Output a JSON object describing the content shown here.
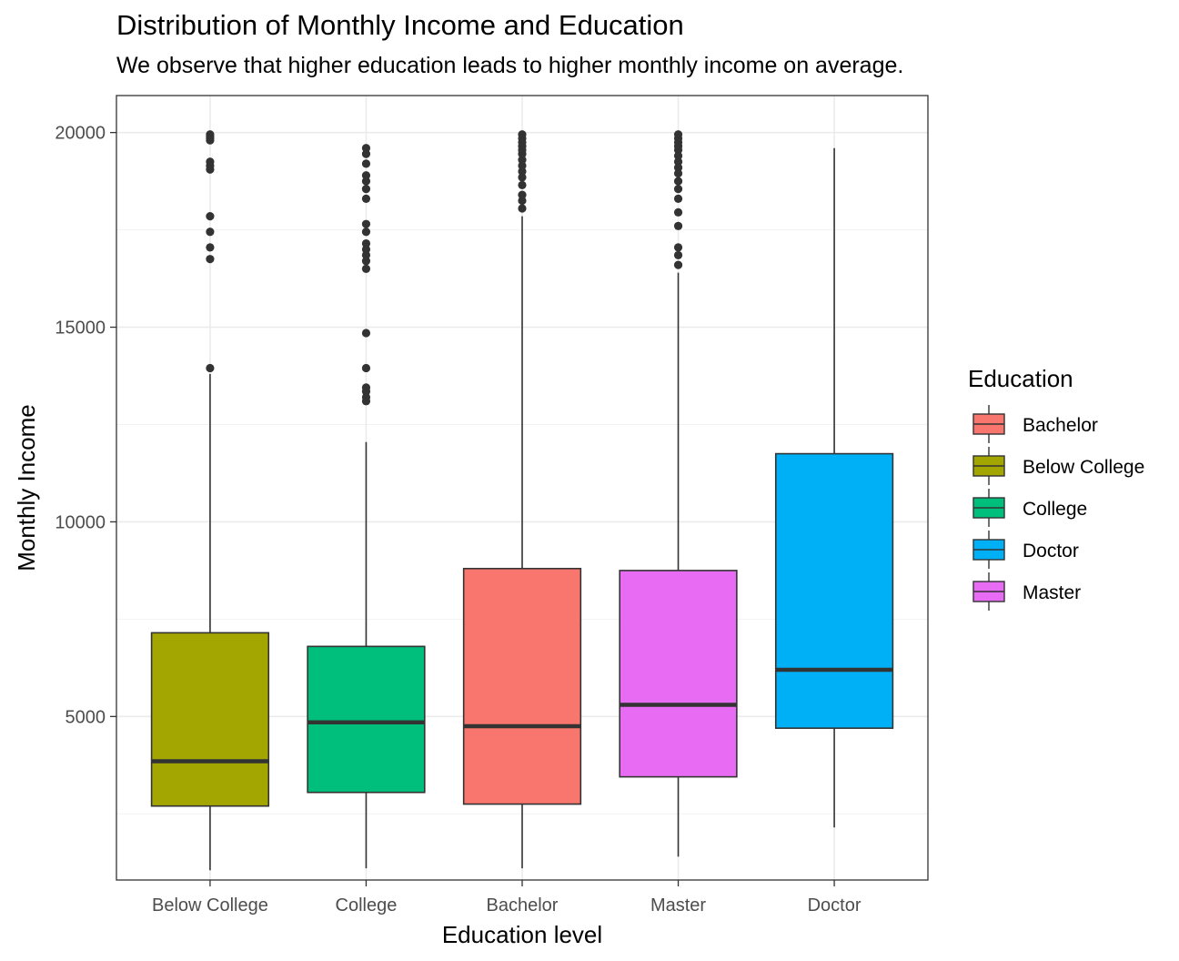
{
  "chart_data": {
    "type": "boxplot",
    "title": "Distribution of Monthly Income and Education",
    "subtitle": "We observe that higher education leads to higher monthly income on average.",
    "xlabel": "Education level",
    "ylabel": "Monthly Income",
    "ylim": [
      800,
      20950
    ],
    "yticks": [
      5000,
      10000,
      15000,
      20000
    ],
    "ytick_labels": [
      "5000",
      "10000",
      "15000",
      "20000"
    ],
    "grid": true,
    "legend": {
      "title": "Education",
      "position": "right",
      "entries": [
        {
          "label": "Bachelor",
          "color": "#F8766D"
        },
        {
          "label": "Below College",
          "color": "#A3A500"
        },
        {
          "label": "College",
          "color": "#00BF7D"
        },
        {
          "label": "Doctor",
          "color": "#00B0F6"
        },
        {
          "label": "Master",
          "color": "#E76BF3"
        }
      ]
    },
    "categories": [
      "Below College",
      "College",
      "Bachelor",
      "Master",
      "Doctor"
    ],
    "boxes": [
      {
        "category": "Below College",
        "color": "#A3A500",
        "whisker_low": 1050,
        "q1": 2700,
        "median": 3850,
        "q3": 7150,
        "whisker_high": 13800,
        "outliers": [
          19950,
          19900,
          19850,
          19800,
          19250,
          19150,
          19050,
          17850,
          17450,
          17050,
          16750,
          13950
        ]
      },
      {
        "category": "College",
        "color": "#00BF7D",
        "whisker_low": 1100,
        "q1": 3050,
        "median": 4850,
        "q3": 6800,
        "whisker_high": 12050,
        "outliers": [
          19600,
          19450,
          19200,
          18900,
          18750,
          18550,
          18300,
          17650,
          17450,
          17150,
          17000,
          16850,
          16700,
          16500,
          14850,
          13950,
          13450,
          13350,
          13200,
          13100
        ]
      },
      {
        "category": "Bachelor",
        "color": "#F8766D",
        "whisker_low": 1100,
        "q1": 2750,
        "median": 4750,
        "q3": 8800,
        "whisker_high": 17850,
        "outliers": [
          19950,
          19850,
          19750,
          19650,
          19550,
          19450,
          19300,
          19150,
          19000,
          18850,
          18650,
          18400,
          18250,
          18050
        ]
      },
      {
        "category": "Master",
        "color": "#E76BF3",
        "whisker_low": 1400,
        "q1": 3450,
        "median": 5300,
        "q3": 8750,
        "whisker_high": 16400,
        "outliers": [
          19950,
          19850,
          19750,
          19650,
          19550,
          19400,
          19250,
          19100,
          18950,
          18750,
          18550,
          18300,
          17950,
          17600,
          17050,
          16850,
          16600
        ]
      },
      {
        "category": "Doctor",
        "color": "#00B0F6",
        "whisker_low": 2150,
        "q1": 4700,
        "median": 6200,
        "q3": 11750,
        "whisker_high": 19600,
        "outliers": []
      }
    ]
  }
}
